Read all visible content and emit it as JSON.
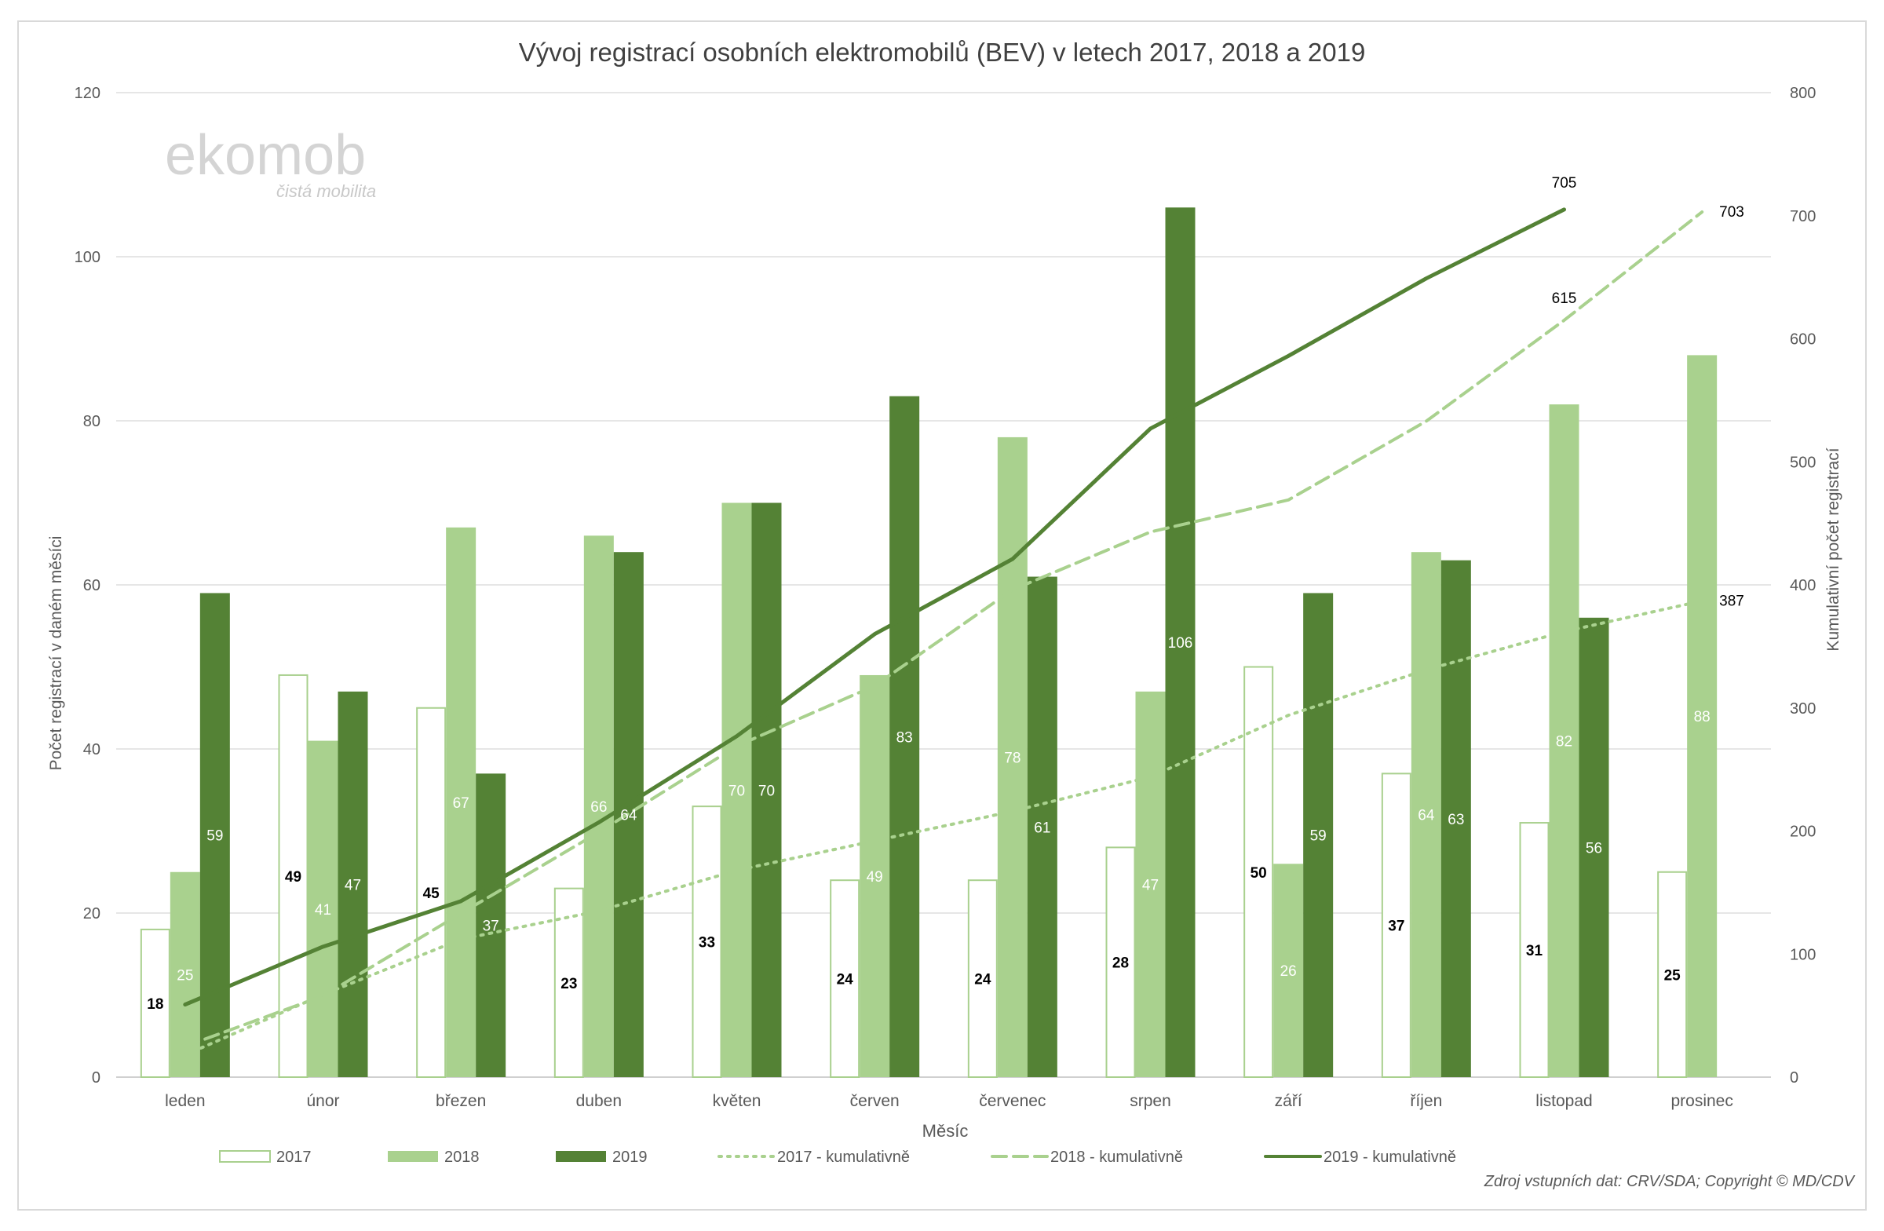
{
  "logo": {
    "name": "ekomob",
    "tagline": "čistá mobilita"
  },
  "source_note": "Zdroj vstupních dat: CRV/SDA; Copyright © MD/CDV",
  "colors": {
    "y2017_fill": "#ffffff",
    "y2017_stroke": "#a9d08e",
    "y2018": "#a9d18e",
    "y2019": "#548235",
    "cum2017": "#a9d18e",
    "cum2018": "#a9d18e",
    "cum2019": "#548235",
    "grid": "#e6e6e6",
    "axis_text": "#595959"
  },
  "chart_data": {
    "type": "bar",
    "title": "Vývoj registrací osobních elektromobilů (BEV) v letech 2017, 2018 a 2019",
    "xlabel": "Měsíc",
    "ylabel": "Počet registrací v daném měsíci",
    "y2label": "Kumulativní počet registrací",
    "ylim": [
      0,
      120
    ],
    "yticks": [
      "0",
      "20",
      "40",
      "60",
      "80",
      "100",
      "120"
    ],
    "y2lim": [
      0,
      800
    ],
    "y2ticks": [
      "0",
      "100",
      "200",
      "300",
      "400",
      "500",
      "600",
      "700",
      "800"
    ],
    "grid": true,
    "legend_position": "bottom",
    "categories": [
      "leden",
      "únor",
      "březen",
      "duben",
      "květen",
      "červen",
      "červenec",
      "srpen",
      "září",
      "říjen",
      "listopad",
      "prosinec"
    ],
    "series": [
      {
        "name": "2017",
        "kind": "bar",
        "values": [
          18,
          49,
          45,
          23,
          33,
          24,
          24,
          28,
          50,
          37,
          31,
          25
        ],
        "labels": [
          "18",
          "49",
          "45",
          "23",
          "33",
          "24",
          "24",
          "28",
          "50",
          "37",
          "31",
          "25"
        ]
      },
      {
        "name": "2018",
        "kind": "bar",
        "values": [
          25,
          41,
          67,
          66,
          70,
          49,
          78,
          47,
          26,
          64,
          82,
          88
        ],
        "labels": [
          "25",
          "41",
          "67",
          "66",
          "70",
          "49",
          "78",
          "47",
          "26",
          "64",
          "82",
          "88"
        ]
      },
      {
        "name": "2019",
        "kind": "bar",
        "values": [
          59,
          47,
          37,
          64,
          70,
          83,
          61,
          106,
          59,
          63,
          56,
          null
        ],
        "labels": [
          "59",
          "47",
          "37",
          "64",
          "70",
          "83",
          "61",
          "106",
          "59",
          "63",
          "56",
          ""
        ]
      },
      {
        "name": "2017 - kumulativně",
        "kind": "line",
        "axis": "y2",
        "values": [
          18,
          67,
          112,
          135,
          168,
          192,
          216,
          244,
          294,
          331,
          362,
          387
        ],
        "end_label": "387"
      },
      {
        "name": "2018 - kumulativně",
        "kind": "line",
        "axis": "y2",
        "values": [
          25,
          66,
          133,
          199,
          269,
          318,
          396,
          443,
          469,
          533,
          615,
          703
        ],
        "point_labels": {
          "10": "615",
          "11": "703"
        }
      },
      {
        "name": "2019 - kumulativně",
        "kind": "line",
        "axis": "y2",
        "values": [
          59,
          106,
          143,
          207,
          277,
          360,
          421,
          527,
          586,
          649,
          705,
          null
        ],
        "point_labels": {
          "10": "705"
        }
      }
    ]
  }
}
